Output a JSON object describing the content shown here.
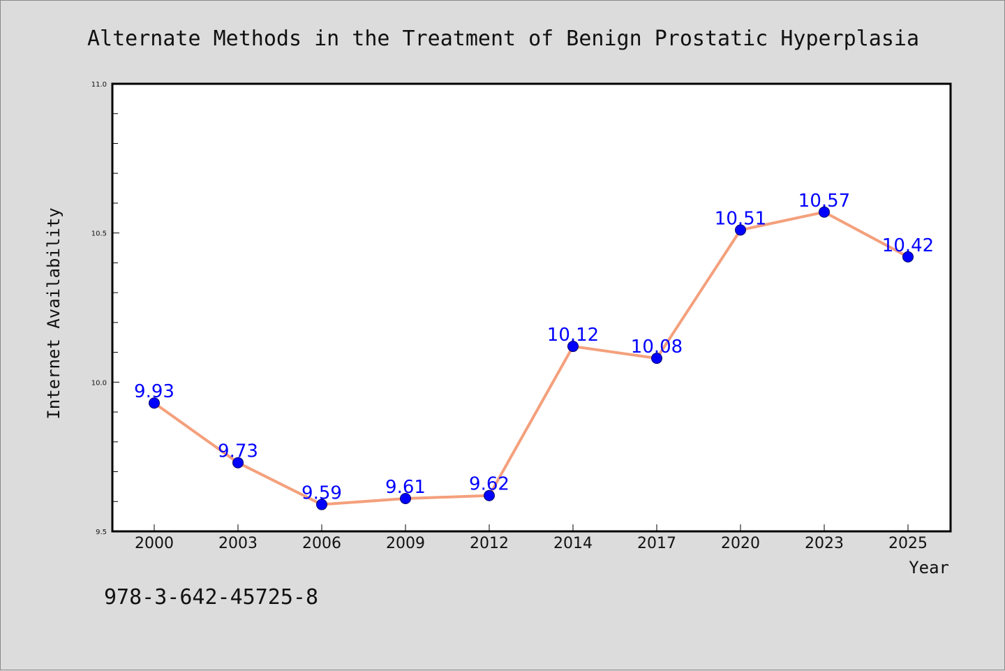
{
  "chart_data": {
    "type": "line",
    "title": "Alternate Methods in the Treatment of Benign Prostatic Hyperplasia",
    "xlabel": "Year",
    "ylabel": "Internet Availability",
    "categories": [
      "2000",
      "2003",
      "2006",
      "2009",
      "2012",
      "2014",
      "2017",
      "2020",
      "2023",
      "2025"
    ],
    "series": [
      {
        "values": [
          9.93,
          9.73,
          9.59,
          9.61,
          9.62,
          10.12,
          10.08,
          10.51,
          10.57,
          10.42
        ],
        "line_color": "#f4a07c",
        "marker_color": "#0000ff"
      }
    ],
    "data_labels": [
      "9.93",
      "9.73",
      "9.59",
      "9.61",
      "9.62",
      "10.12",
      "10.08",
      "10.51",
      "10.57",
      "10.42"
    ],
    "data_label_color": "#0000ff",
    "ylim": [
      9.5,
      11.0
    ],
    "yticks": [
      9.5,
      10.0,
      10.5,
      11.0
    ],
    "ytick_labels": [
      "9.5",
      "10.0",
      "10.5",
      "11.0"
    ],
    "grid": false,
    "background_color": "#dcdcdc",
    "plot_background_color": "#ffffff"
  },
  "footer": {
    "isbn": "978-3-642-45725-8"
  }
}
